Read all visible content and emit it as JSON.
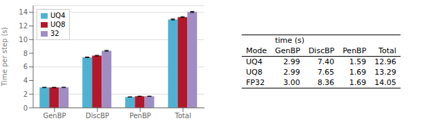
{
  "chart_data": {
    "type": "bar",
    "categories": [
      "GenBP",
      "DiscBP",
      "PenBP",
      "Total"
    ],
    "series": [
      {
        "name": "UQ4",
        "color": "#4eb3d3",
        "values": [
          2.99,
          7.4,
          1.59,
          12.96
        ],
        "errors": [
          0.03,
          0.05,
          0.02,
          0.08
        ]
      },
      {
        "name": "UQ8",
        "color": "#b2182b",
        "values": [
          2.99,
          7.65,
          1.69,
          13.29
        ],
        "errors": [
          0.03,
          0.05,
          0.02,
          0.08
        ]
      },
      {
        "name": "32",
        "color": "#9e8ec4",
        "values": [
          3.0,
          8.36,
          1.69,
          14.05
        ],
        "errors": [
          0.03,
          0.06,
          0.02,
          0.08
        ]
      }
    ],
    "ylabel": "Time per step (s)",
    "ylim": [
      0,
      15
    ],
    "yticks": [
      0,
      2,
      4,
      6,
      8,
      10,
      12,
      14
    ],
    "grid": true,
    "legend": "upper left",
    "table": {
      "header": "time (s)",
      "row_label_header": "Mode",
      "columns": [
        "GenBP",
        "DiscBP",
        "PenBP",
        "Total"
      ],
      "rows": [
        {
          "label": "UQ4",
          "values": [
            "2.99",
            "7.40",
            "1.59",
            "12.96"
          ]
        },
        {
          "label": "UQ8",
          "values": [
            "2.99",
            "7.65",
            "1.69",
            "13.29"
          ]
        },
        {
          "label": "FP32",
          "values": [
            "3.00",
            "8.36",
            "1.69",
            "14.05"
          ]
        }
      ]
    }
  }
}
